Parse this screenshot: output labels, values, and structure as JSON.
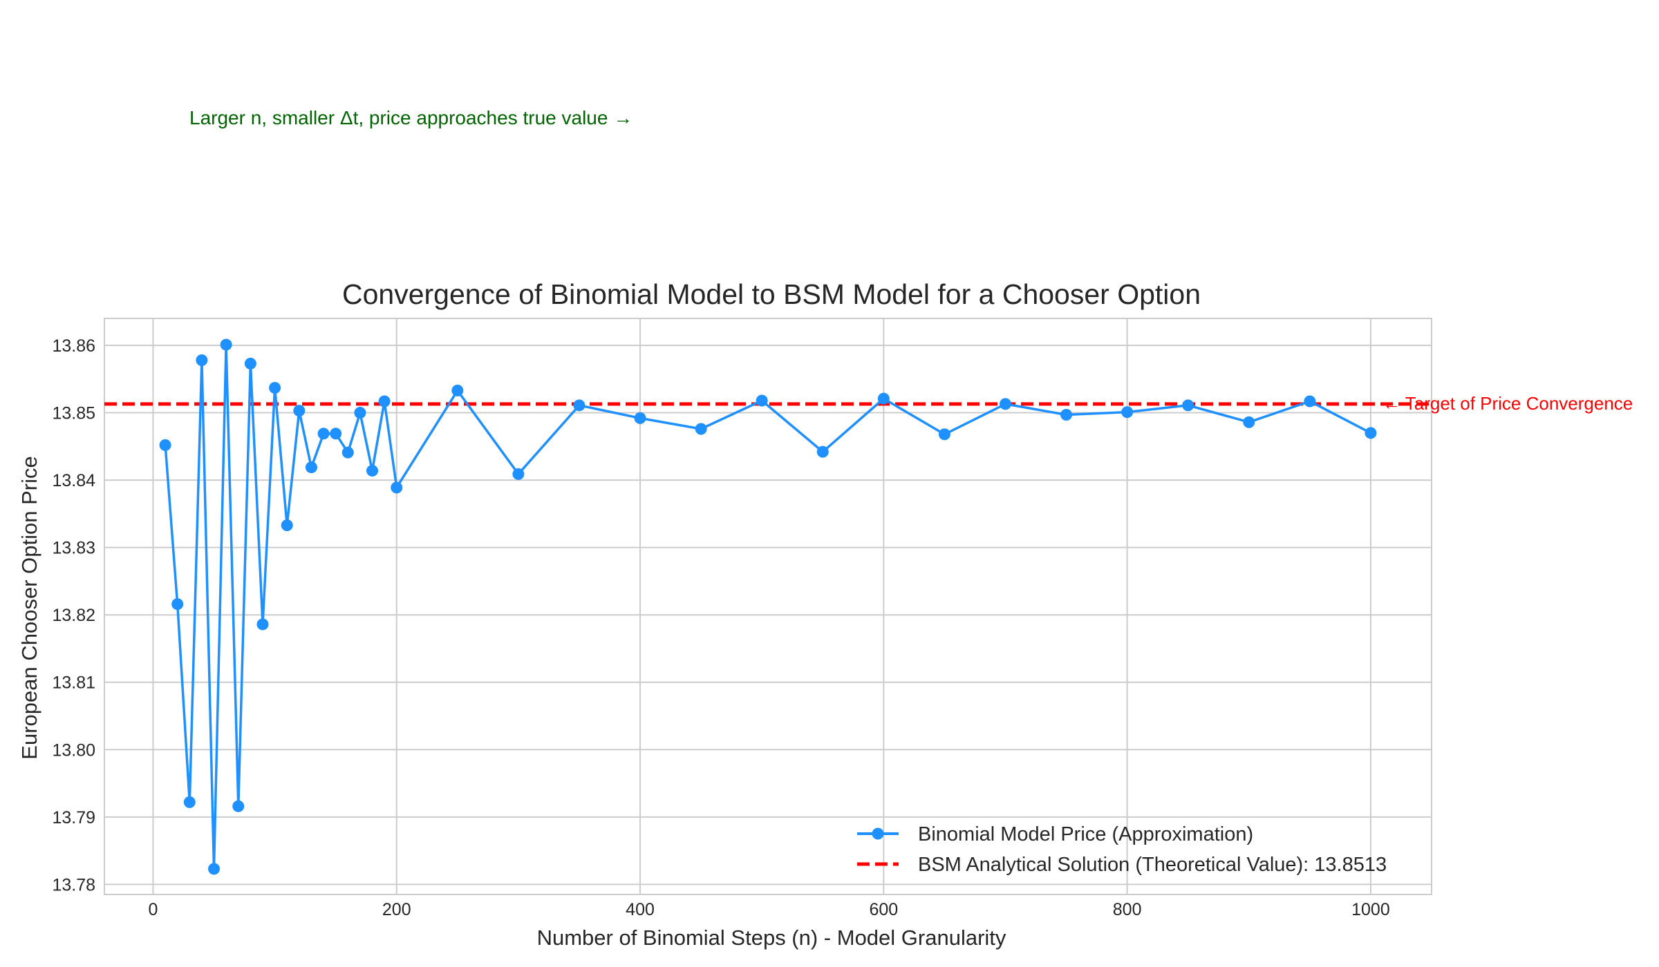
{
  "chart_data": {
    "type": "line",
    "title": "Convergence of Binomial Model to BSM Model for a Chooser Option",
    "xlabel": "Number of Binomial Steps (n) - Model Granularity",
    "ylabel": "European Chooser Option Price",
    "xlim": [
      -40,
      1050
    ],
    "ylim": [
      13.7785,
      13.864
    ],
    "xticks": [
      0,
      200,
      400,
      600,
      800,
      1000
    ],
    "yticks": [
      13.78,
      13.79,
      13.8,
      13.81,
      13.82,
      13.83,
      13.84,
      13.85,
      13.86
    ],
    "ytick_labels": [
      "13.78",
      "13.79",
      "13.80",
      "13.81",
      "13.82",
      "13.83",
      "13.84",
      "13.85",
      "13.86"
    ],
    "grid": true,
    "legend_position": "lower-right",
    "series": [
      {
        "name": "Binomial Model Price (Approximation)",
        "color": "#1e90ff",
        "marker": "circle",
        "x": [
          10,
          20,
          30,
          40,
          50,
          60,
          70,
          80,
          90,
          100,
          110,
          120,
          130,
          140,
          150,
          160,
          170,
          180,
          190,
          200,
          250,
          300,
          350,
          400,
          450,
          500,
          550,
          600,
          650,
          700,
          750,
          800,
          850,
          900,
          950,
          1000
        ],
        "y": [
          13.8452,
          13.8216,
          13.7922,
          13.8578,
          13.7823,
          13.8601,
          13.7916,
          13.8573,
          13.8186,
          13.8537,
          13.8333,
          13.8503,
          13.8419,
          13.8469,
          13.8469,
          13.8441,
          13.85,
          13.8414,
          13.8517,
          13.8389,
          13.8533,
          13.8409,
          13.8511,
          13.8492,
          13.8476,
          13.8518,
          13.8442,
          13.8521,
          13.8468,
          13.8513,
          13.8497,
          13.8501,
          13.8511,
          13.8486,
          13.8517,
          13.847
        ]
      },
      {
        "name": "BSM Analytical Solution (Theoretical Value): 13.8513",
        "color": "#ff0000",
        "style": "dashed",
        "y_constant": 13.8513
      }
    ],
    "annotations": [
      {
        "text": "Larger n, smaller Δt, price approaches true value →",
        "color": "#006400"
      },
      {
        "text": "← Target of Price Convergence",
        "color": "#ff0000"
      }
    ]
  }
}
